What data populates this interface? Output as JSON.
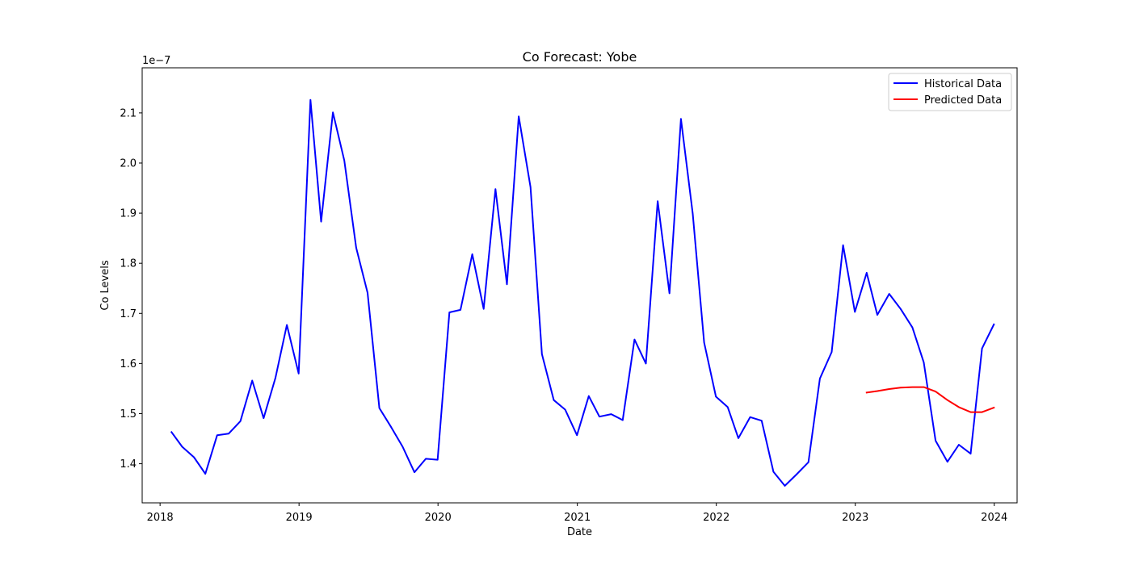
{
  "chart_data": {
    "type": "line",
    "title": "Co Forecast: Yobe",
    "xlabel": "Date",
    "ylabel": "Co Levels",
    "y_offset_label": "1e−7",
    "xlim": [
      "2017-11-15",
      "2024-03-01"
    ],
    "ylim": [
      1.322,
      2.19
    ],
    "x_ticks": [
      "2018",
      "2019",
      "2020",
      "2021",
      "2022",
      "2023",
      "2024"
    ],
    "y_ticks": [
      "1.4",
      "1.5",
      "1.6",
      "1.7",
      "1.8",
      "1.9",
      "2.0",
      "2.1"
    ],
    "grid": false,
    "legend": "upper right",
    "series": [
      {
        "name": "Historical Data",
        "color": "#0000ff",
        "x": [
          "2018-01-31",
          "2018-02-28",
          "2018-03-31",
          "2018-04-30",
          "2018-05-31",
          "2018-06-30",
          "2018-07-31",
          "2018-08-31",
          "2018-09-30",
          "2018-10-31",
          "2018-11-30",
          "2018-12-31",
          "2019-01-31",
          "2019-02-28",
          "2019-03-31",
          "2019-04-30",
          "2019-05-31",
          "2019-06-30",
          "2019-07-31",
          "2019-08-31",
          "2019-09-30",
          "2019-10-31",
          "2019-11-30",
          "2019-12-31",
          "2020-01-31",
          "2020-02-29",
          "2020-03-31",
          "2020-04-30",
          "2020-05-31",
          "2020-06-30",
          "2020-07-31",
          "2020-08-31",
          "2020-09-30",
          "2020-10-31",
          "2020-11-30",
          "2020-12-31",
          "2021-01-31",
          "2021-02-28",
          "2021-03-31",
          "2021-04-30",
          "2021-05-31",
          "2021-06-30",
          "2021-07-31",
          "2021-08-31",
          "2021-09-30",
          "2021-10-31",
          "2021-11-30",
          "2021-12-31",
          "2022-01-31",
          "2022-02-28",
          "2022-03-31",
          "2022-04-30",
          "2022-05-31",
          "2022-06-30",
          "2022-07-31",
          "2022-08-31",
          "2022-09-30",
          "2022-10-31",
          "2022-11-30",
          "2022-12-31",
          "2023-01-31",
          "2023-02-28",
          "2023-03-31",
          "2023-04-30",
          "2023-05-31",
          "2023-06-30",
          "2023-07-31",
          "2023-08-31",
          "2023-09-30",
          "2023-10-31",
          "2023-11-30",
          "2023-12-31"
        ],
        "values": [
          1.463,
          1.434,
          1.413,
          1.38,
          1.457,
          1.46,
          1.485,
          1.566,
          1.491,
          1.571,
          1.677,
          1.58,
          2.126,
          1.883,
          2.101,
          2.005,
          1.831,
          1.741,
          1.511,
          1.473,
          1.434,
          1.383,
          1.41,
          1.408,
          1.702,
          1.707,
          1.818,
          1.709,
          1.948,
          1.758,
          2.093,
          1.952,
          1.619,
          1.527,
          1.508,
          1.457,
          1.535,
          1.494,
          1.499,
          1.487,
          1.648,
          1.6,
          1.924,
          1.74,
          2.088,
          1.899,
          1.642,
          1.534,
          1.513,
          1.451,
          1.493,
          1.486,
          1.384,
          1.356,
          1.379,
          1.403,
          1.57,
          1.623,
          1.836,
          1.703,
          1.781,
          1.697,
          1.739,
          1.709,
          1.672,
          1.602,
          1.446,
          1.404,
          1.438,
          1.42,
          1.63,
          1.678
        ]
      },
      {
        "name": "Predicted Data",
        "color": "#ff0000",
        "x": [
          "2023-01-31",
          "2023-02-28",
          "2023-03-31",
          "2023-04-30",
          "2023-05-31",
          "2023-06-30",
          "2023-07-31",
          "2023-08-31",
          "2023-09-30",
          "2023-10-31",
          "2023-11-30",
          "2023-12-31"
        ],
        "values": [
          1.542,
          1.545,
          1.549,
          1.552,
          1.553,
          1.553,
          1.544,
          1.527,
          1.513,
          1.503,
          1.503,
          1.512
        ]
      }
    ]
  }
}
